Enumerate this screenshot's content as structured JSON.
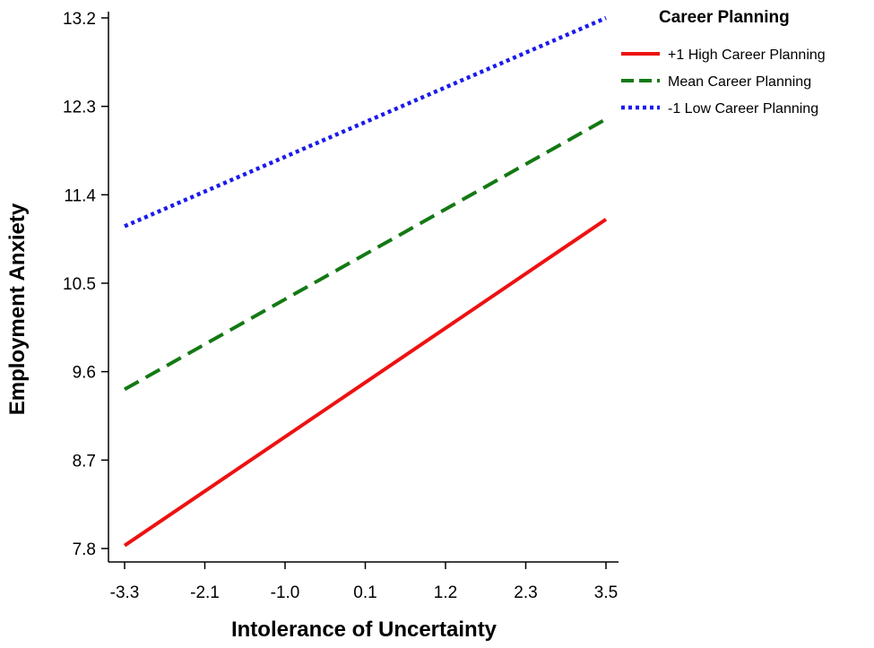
{
  "chart_data": {
    "type": "line",
    "xlabel": "Intolerance of Uncertainty",
    "ylabel": "Employment Anxiety",
    "x_ticks": [
      "-3.3",
      "-2.1",
      "-1.0",
      "0.1",
      "1.2",
      "2.3",
      "3.5"
    ],
    "y_ticks": [
      "7.8",
      "8.7",
      "9.6",
      "10.5",
      "11.4",
      "12.3",
      "13.2"
    ],
    "xlim": [
      -3.3,
      3.5
    ],
    "ylim": [
      7.8,
      13.2
    ],
    "legend": {
      "title": "Career Planning",
      "placement": "top-right"
    },
    "series": [
      {
        "name": "+1 High Career Planning",
        "color": "#ee1111",
        "style": "solid",
        "x": [
          -3.3,
          3.5
        ],
        "y": [
          7.83,
          11.15
        ]
      },
      {
        "name": "Mean Career Planning",
        "color": "#137913",
        "style": "dashed",
        "x": [
          -3.3,
          3.5
        ],
        "y": [
          9.42,
          12.17
        ]
      },
      {
        "name": "-1 Low Career Planning",
        "color": "#1a1aee",
        "style": "dotted",
        "x": [
          -3.3,
          3.5
        ],
        "y": [
          11.08,
          13.2
        ]
      }
    ]
  }
}
